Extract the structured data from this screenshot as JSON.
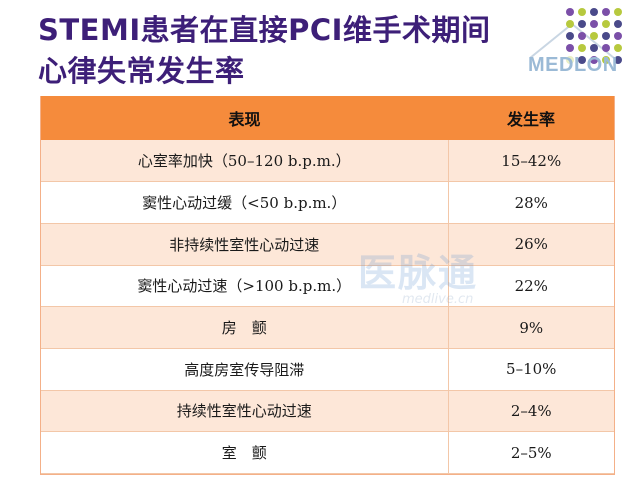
{
  "title": {
    "line1": "STEMI患者在直接PCI维手术期间",
    "line2": "心律失常发生率"
  },
  "logo": {
    "text": "MEDLON",
    "dot_colors": [
      "#7b4fa8",
      "#b7c93e",
      "#4a4a8a"
    ]
  },
  "table": {
    "headers": [
      "表现",
      "发生率"
    ],
    "rows": [
      [
        "心室率加快（50–120 b.p.m.）",
        "15–42%"
      ],
      [
        "窦性心动过缓（<50 b.p.m.）",
        "28%"
      ],
      [
        "非持续性室性心动过速",
        "26%"
      ],
      [
        "窦性心动过速（>100 b.p.m.）",
        "22%"
      ],
      [
        "房　颤",
        "9%"
      ],
      [
        "高度房室传导阻滞",
        "5–10%"
      ],
      [
        "持续性室性心动过速",
        "2–4%"
      ],
      [
        "室　颤",
        "2–5%"
      ]
    ],
    "header_color": "#f58b3c",
    "stripe_color": "#fde7d8"
  },
  "watermark": {
    "main": "医脉通",
    "sub": "medlive.cn"
  }
}
